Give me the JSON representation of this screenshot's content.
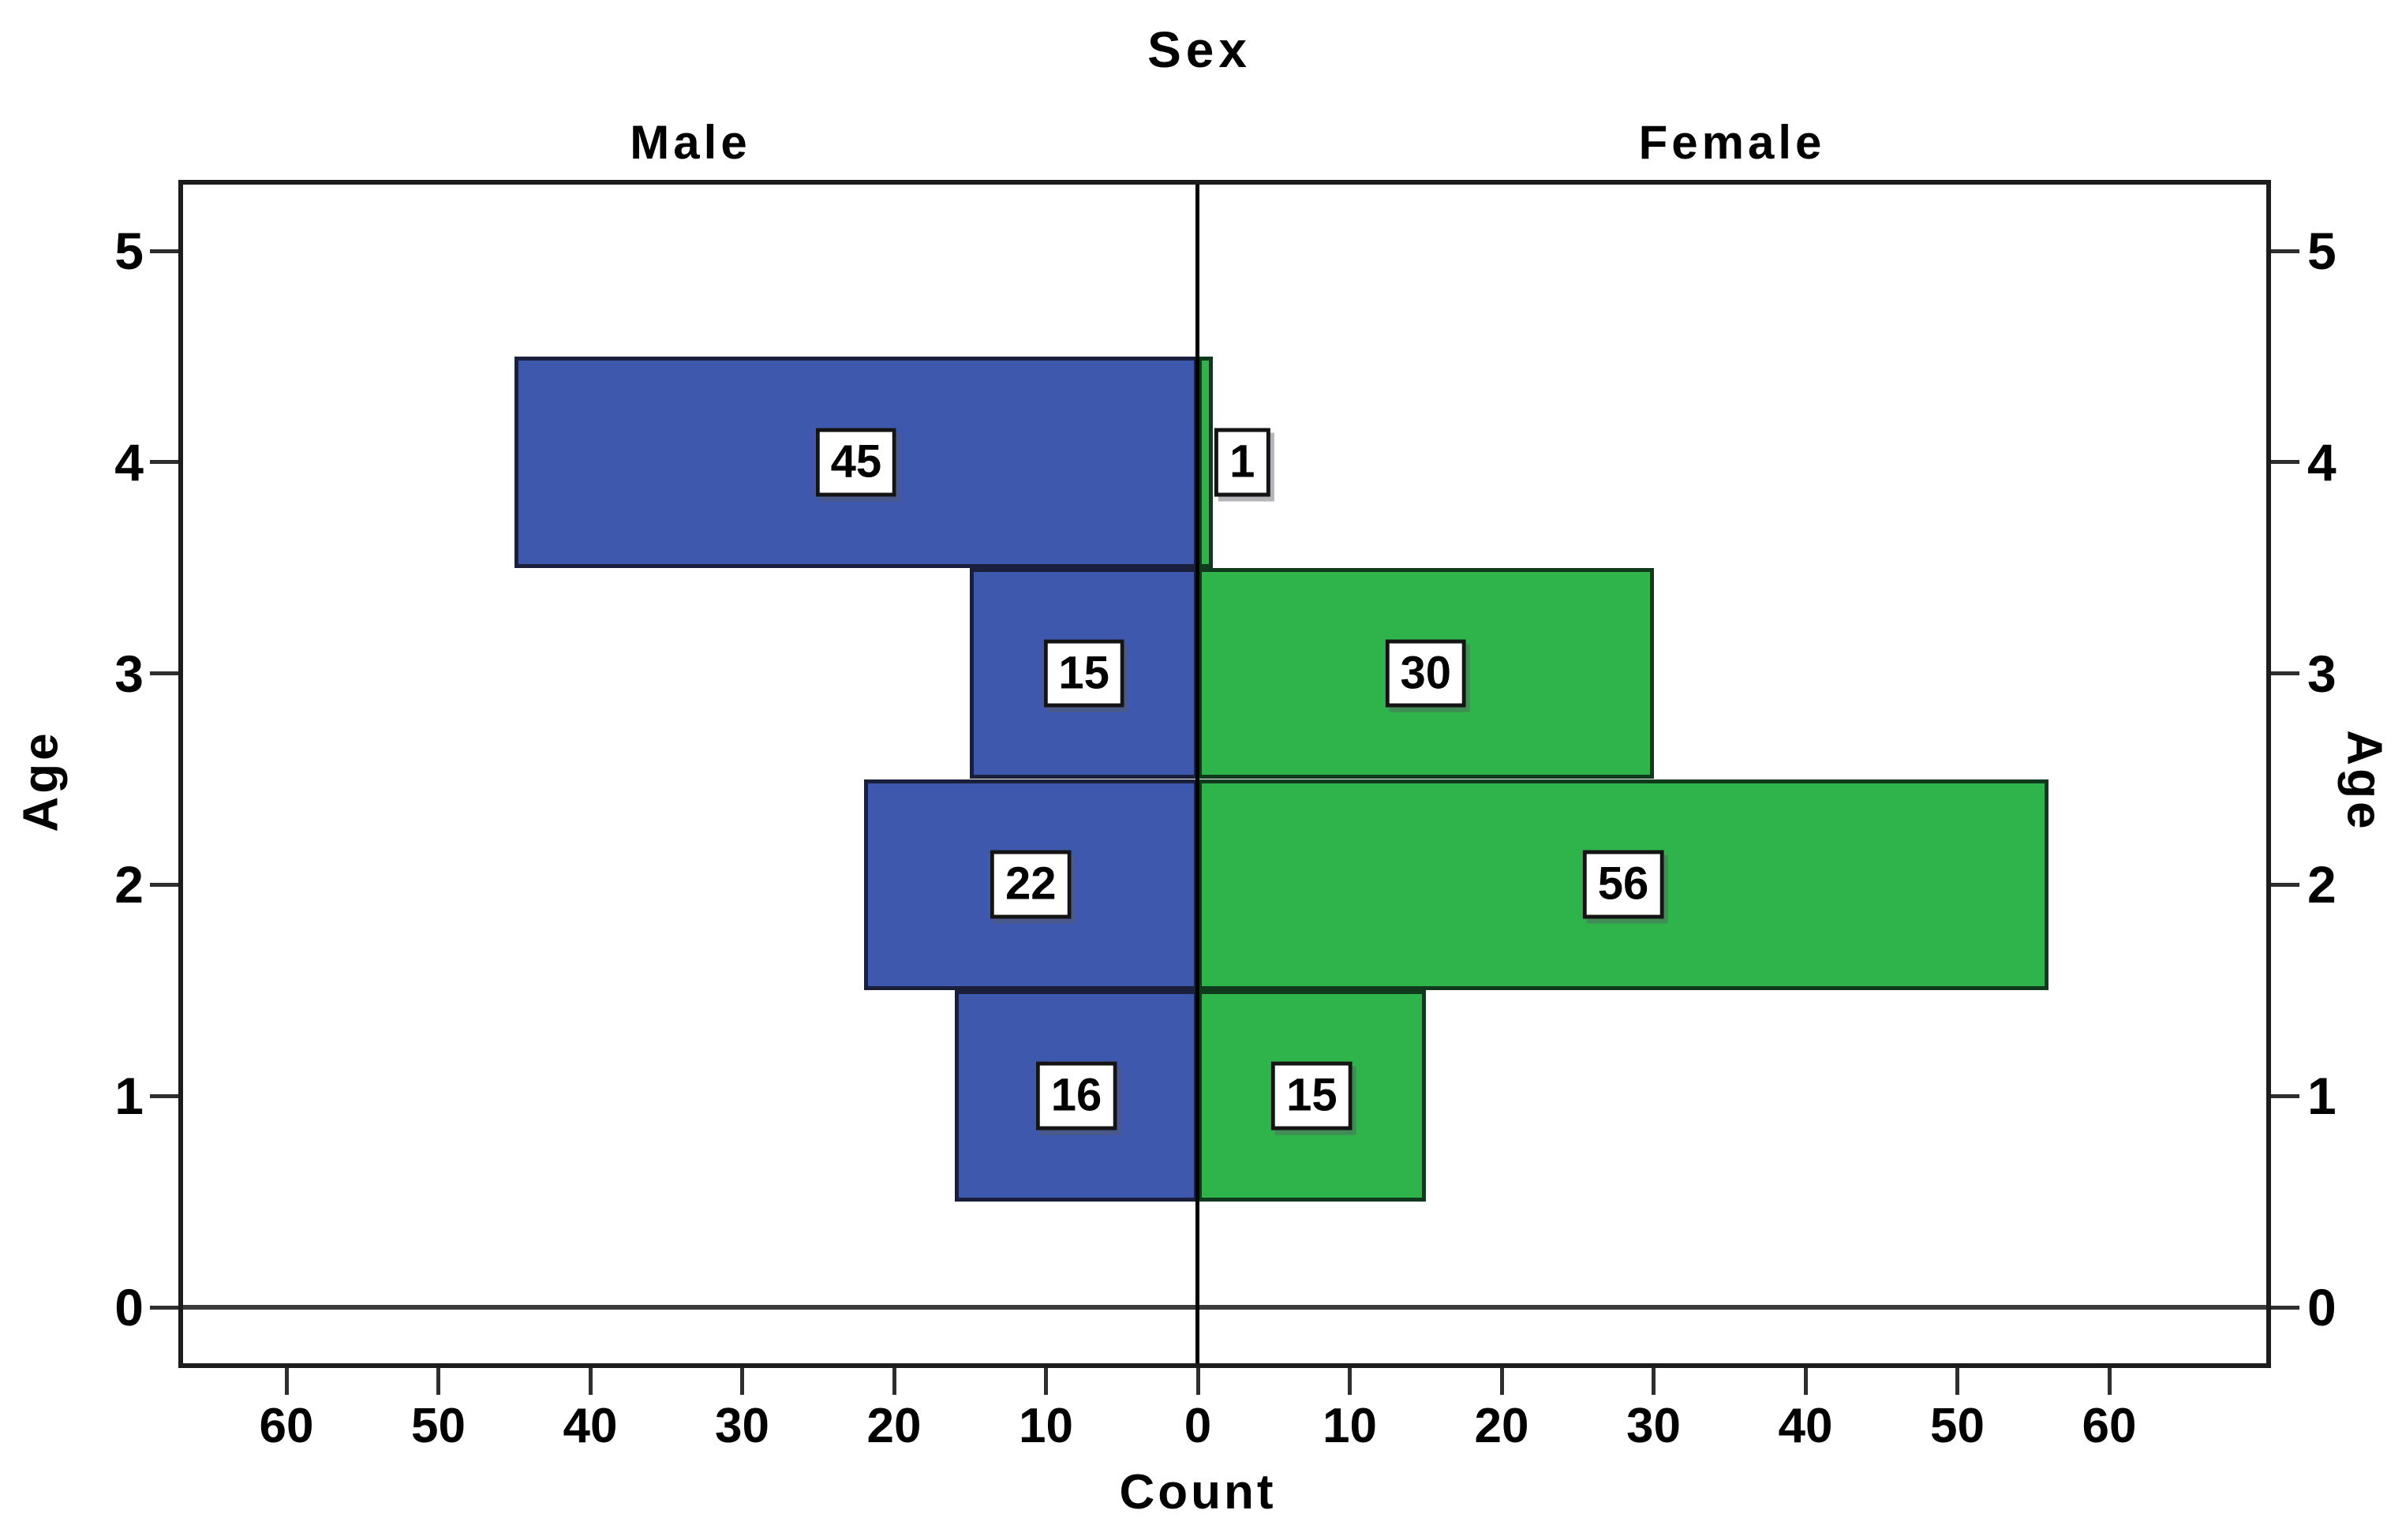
{
  "figure": {
    "title": "Sex"
  },
  "panels": {
    "male_label": "Male",
    "female_label": "Female"
  },
  "axes": {
    "x_label": "Count",
    "y_label_left": "Age",
    "y_label_right": "Age"
  },
  "chart_data": {
    "type": "bar",
    "variant": "population-pyramid",
    "title": "Sex",
    "xlabel": "Count",
    "ylabel": "Age",
    "categories": [
      1,
      2,
      3,
      4
    ],
    "series": [
      {
        "name": "Male",
        "side": "left",
        "color": "#3D58AC",
        "values": [
          16,
          22,
          15,
          45
        ]
      },
      {
        "name": "Female",
        "side": "right",
        "color": "#2EB44B",
        "values": [
          15,
          56,
          30,
          1
        ]
      }
    ],
    "bar_value_labels_shown": true,
    "x_ticks_abs": [
      0,
      10,
      20,
      30,
      40,
      50,
      60
    ],
    "y_ticks": [
      0,
      1,
      2,
      3,
      4,
      5
    ],
    "xlim_abs": 60,
    "ylim": [
      0,
      5
    ],
    "grid": false,
    "legend": "none"
  },
  "colors": {
    "male_fill": "#3D58AC",
    "male_border": "#1A1F3C",
    "female_fill": "#2EB44B",
    "female_border": "#0F3A1B",
    "frame": "#1C1C1C",
    "zero_line": "#3C3C3C",
    "center_line": "#000000",
    "tick": "#2E2E2E",
    "label_box_bg": "#FFFFFF",
    "label_box_border": "#141414",
    "background": "#FFFFFF"
  }
}
